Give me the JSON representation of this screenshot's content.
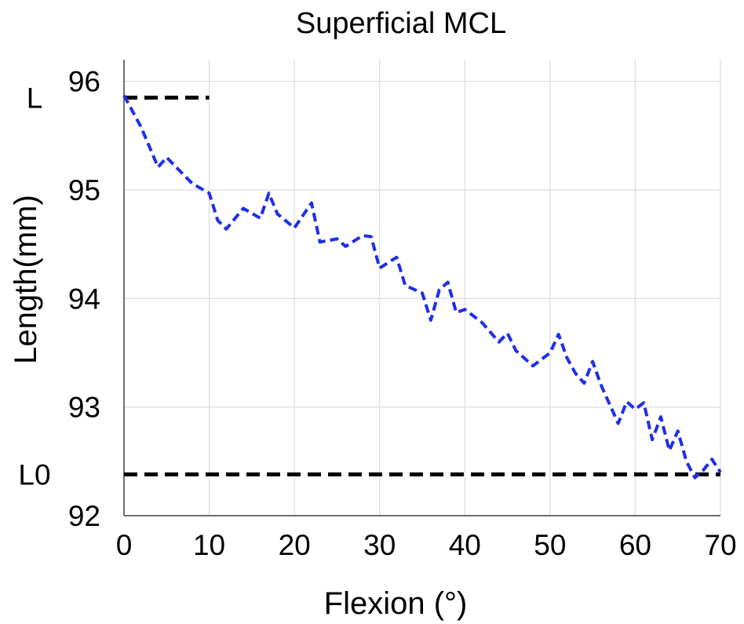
{
  "chart_data": {
    "type": "line",
    "title": "Superficial MCL",
    "xlabel": "Flexion (°)",
    "ylabel": "Length(mm)",
    "xlim": [
      0,
      70
    ],
    "ylim": [
      92,
      96.2
    ],
    "xticks": [
      "0",
      "10",
      "20",
      "30",
      "40",
      "50",
      "60",
      "70"
    ],
    "yticks": [
      "92",
      "93",
      "94",
      "95",
      "96"
    ],
    "grid": true,
    "series": [
      {
        "color": "#1f2ee8",
        "line_style": "dashed",
        "x": [
          0,
          2,
          4,
          5,
          6,
          8,
          10,
          11,
          12,
          14,
          16,
          17,
          18,
          20,
          22,
          23,
          25,
          26,
          28,
          29,
          30,
          32,
          33,
          35,
          36,
          37,
          38,
          39,
          40,
          42,
          44,
          45,
          46,
          48,
          50,
          51,
          52,
          53,
          54,
          55,
          56,
          58,
          59,
          60,
          61,
          62,
          63,
          64,
          65,
          66,
          67,
          68,
          69,
          70
        ],
        "y": [
          95.87,
          95.58,
          95.21,
          95.3,
          95.22,
          95.06,
          94.97,
          94.72,
          94.64,
          94.83,
          94.74,
          94.97,
          94.78,
          94.65,
          94.88,
          94.52,
          94.55,
          94.48,
          94.58,
          94.57,
          94.28,
          94.38,
          94.12,
          94.05,
          93.8,
          94.08,
          94.15,
          93.87,
          93.9,
          93.78,
          93.6,
          93.68,
          93.52,
          93.38,
          93.5,
          93.67,
          93.45,
          93.31,
          93.22,
          93.42,
          93.2,
          92.85,
          93.05,
          92.98,
          93.04,
          92.7,
          92.91,
          92.6,
          92.78,
          92.5,
          92.35,
          92.42,
          92.52,
          92.4
        ]
      }
    ],
    "reference_lines": [
      {
        "label": "L",
        "y": 95.85,
        "x_range": [
          0,
          10
        ],
        "color": "#000000",
        "line_style": "dashed"
      },
      {
        "label": "L0",
        "y": 92.38,
        "x_range": [
          0,
          70
        ],
        "color": "#000000",
        "line_style": "dashed"
      }
    ]
  }
}
